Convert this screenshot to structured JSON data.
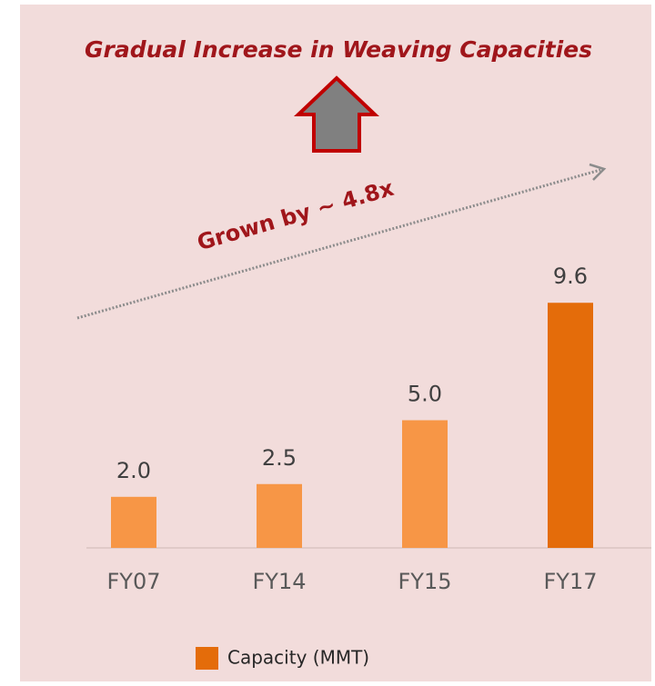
{
  "chart_data": {
    "type": "bar",
    "title": "Gradual Increase in Weaving Capacities",
    "annotations": [
      "Grown by ~ 4.8x"
    ],
    "categories": [
      "FY07",
      "FY14",
      "FY15",
      "FY17"
    ],
    "series": [
      {
        "name": "Capacity (MMT)",
        "color": "#e46c0a",
        "colors": [
          "#f79646",
          "#f79646",
          "#f79646",
          "#e46c0a"
        ],
        "values": [
          2,
          2.5,
          5,
          9.6
        ],
        "value_labels": [
          "2.0",
          "2.5",
          "5.0",
          "9.6"
        ]
      }
    ]
  }
}
